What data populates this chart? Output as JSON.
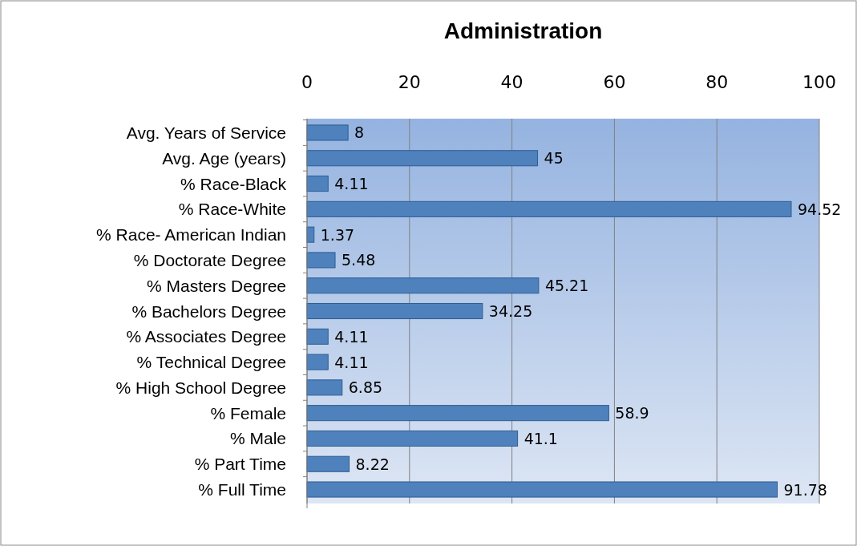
{
  "chart_data": {
    "type": "bar",
    "orientation": "horizontal",
    "title": "Administration",
    "categories": [
      "Avg. Years of Service",
      "Avg. Age (years)",
      "% Race-Black",
      "% Race-White",
      "% Race- American Indian",
      "% Doctorate Degree",
      "% Masters Degree",
      "% Bachelors Degree",
      "% Associates Degree",
      "% Technical Degree",
      "% High School Degree",
      "% Female",
      "% Male",
      "% Part Time",
      "% Full Time"
    ],
    "values": [
      8,
      45,
      4.11,
      94.52,
      1.37,
      5.48,
      45.21,
      34.25,
      4.11,
      4.11,
      6.85,
      58.9,
      41.1,
      8.22,
      91.78
    ],
    "color": "#4f81bd",
    "xlim": [
      0,
      100
    ],
    "xticks": [
      0,
      20,
      40,
      60,
      80,
      100
    ],
    "grid": "x",
    "data_labels": true
  }
}
